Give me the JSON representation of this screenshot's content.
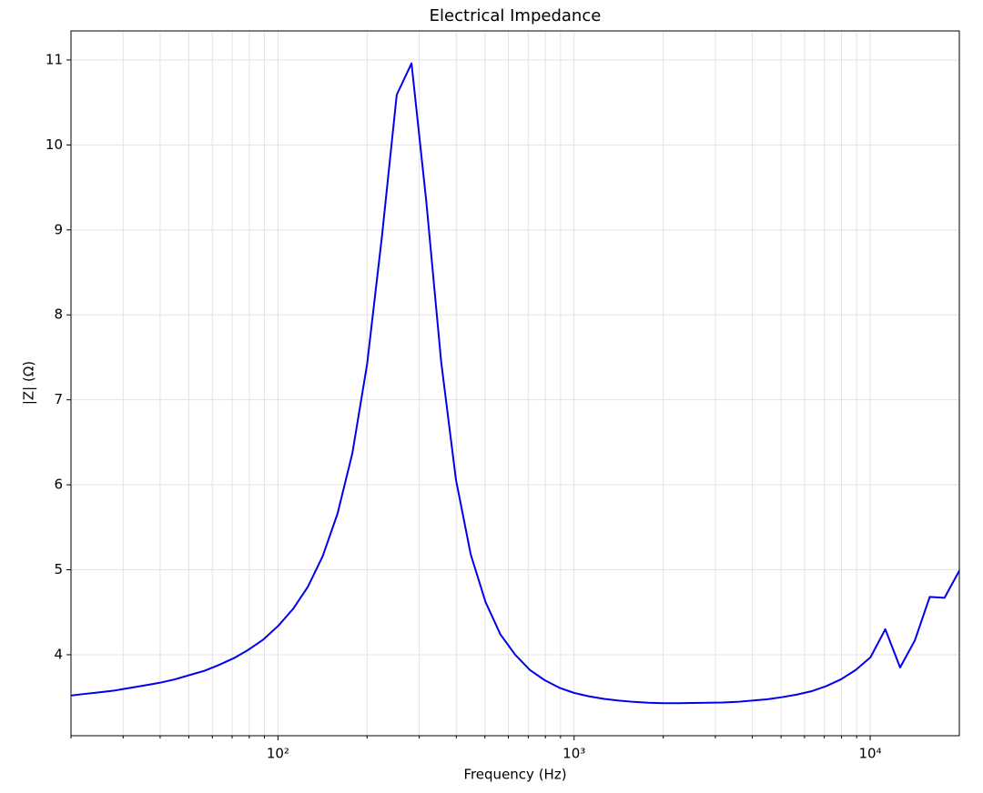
{
  "chart_data": {
    "type": "line",
    "title": "Electrical Impedance",
    "xlabel": "Frequency (Hz)",
    "ylabel": "|Z| (Ω)",
    "x": [
      20,
      22.4,
      25.2,
      28.2,
      31.7,
      35.6,
      39.9,
      44.8,
      50.2,
      56.4,
      63.2,
      71,
      79.6,
      89.3,
      100.2,
      112.5,
      126.2,
      141.6,
      158.9,
      178.3,
      200,
      224.4,
      251.8,
      282.5,
      317,
      355.7,
      399.1,
      447.7,
      502.4,
      563.7,
      632.5,
      709.6,
      796.2,
      893.4,
      1002,
      1125,
      1262,
      1416,
      1589,
      1783,
      2000,
      2244,
      2518,
      2825,
      3170,
      3557,
      3991,
      4477,
      5024,
      5637,
      6325,
      7096,
      7962,
      8934,
      10024,
      11247,
      12619,
      14159,
      15887,
      17826,
      20000
    ],
    "values": [
      3.52,
      3.54,
      3.56,
      3.58,
      3.61,
      3.64,
      3.67,
      3.71,
      3.76,
      3.81,
      3.88,
      3.96,
      4.06,
      4.18,
      4.34,
      4.54,
      4.8,
      5.16,
      5.66,
      6.37,
      7.42,
      8.92,
      10.59,
      10.96,
      9.33,
      7.45,
      6.06,
      5.18,
      4.62,
      4.24,
      4.0,
      3.82,
      3.7,
      3.61,
      3.55,
      3.51,
      3.48,
      3.46,
      3.445,
      3.435,
      3.43,
      3.43,
      3.432,
      3.435,
      3.437,
      3.445,
      3.46,
      3.475,
      3.5,
      3.53,
      3.57,
      3.63,
      3.71,
      3.82,
      3.97,
      4.3,
      3.85,
      4.17,
      4.68,
      4.67,
      4.99
    ],
    "color": "#0000ee",
    "xscale": "log",
    "xlim": [
      20,
      20000
    ],
    "xticks": [
      {
        "value": 100,
        "label": "10²"
      },
      {
        "value": 1000,
        "label": "10³"
      },
      {
        "value": 10000,
        "label": "10⁴"
      }
    ],
    "xminorticks": [
      20,
      30,
      40,
      50,
      60,
      70,
      80,
      90,
      200,
      300,
      400,
      500,
      600,
      700,
      800,
      900,
      2000,
      3000,
      4000,
      5000,
      6000,
      7000,
      8000,
      9000
    ],
    "ylim": [
      3.047,
      11.342
    ],
    "yticks": [
      4,
      5,
      6,
      7,
      8,
      9,
      10,
      11
    ],
    "grid": true
  }
}
